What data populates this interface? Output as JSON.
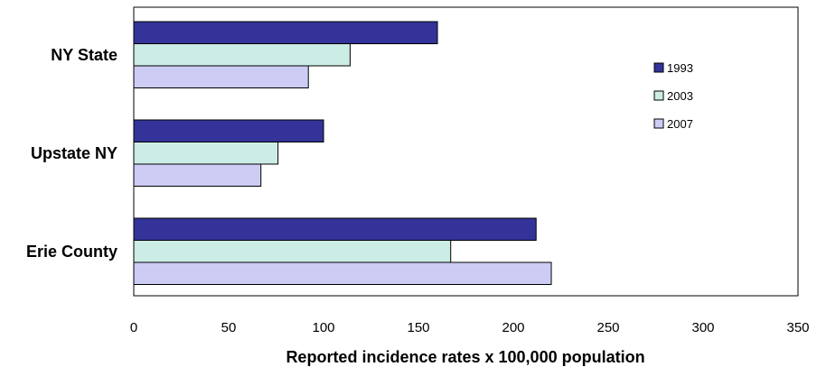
{
  "chart_data": {
    "type": "bar",
    "orientation": "horizontal",
    "title": "",
    "xlabel": "Reported incidence rates x 100,000 population",
    "ylabel": "",
    "xlim": [
      0,
      350
    ],
    "x_ticks": [
      "0",
      "50",
      "100",
      "150",
      "200",
      "250",
      "300",
      "350"
    ],
    "x_tick_values": [
      0,
      50,
      100,
      150,
      200,
      250,
      300,
      350
    ],
    "categories": [
      "NY State",
      "Upstate NY",
      "Erie County"
    ],
    "series": [
      {
        "name": "1993",
        "color": "#333399",
        "values": [
          160,
          100,
          212
        ]
      },
      {
        "name": "2003",
        "color": "#ccece6",
        "values": [
          114,
          76,
          167
        ]
      },
      {
        "name": "2007",
        "color": "#ccccf5",
        "values": [
          92,
          67,
          220
        ]
      }
    ],
    "grid": false,
    "legend_position": "right"
  }
}
